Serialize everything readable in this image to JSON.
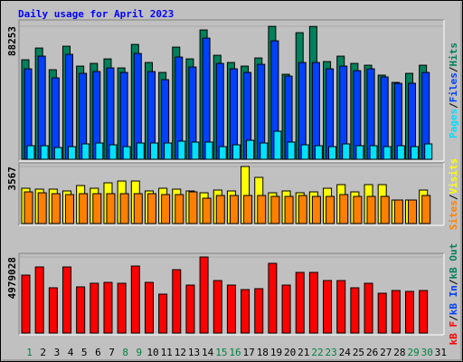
{
  "chart_data": {
    "type": "bar",
    "title": "Daily usage for April 2023",
    "categories": [
      "1",
      "2",
      "3",
      "4",
      "5",
      "6",
      "7",
      "8",
      "9",
      "10",
      "11",
      "12",
      "13",
      "14",
      "15",
      "16",
      "17",
      "18",
      "19",
      "20",
      "21",
      "22",
      "23",
      "24",
      "25",
      "26",
      "27",
      "28",
      "29",
      "30",
      "31"
    ],
    "category_colors": [
      "#008040",
      "#000000",
      "#000000",
      "#000000",
      "#000000",
      "#000000",
      "#000000",
      "#008040",
      "#008040",
      "#000000",
      "#000000",
      "#000000",
      "#000000",
      "#000000",
      "#008040",
      "#008040",
      "#000000",
      "#000000",
      "#000000",
      "#000000",
      "#000000",
      "#008040",
      "#008040",
      "#000000",
      "#000000",
      "#000000",
      "#000000",
      "#000000",
      "#008040",
      "#008040",
      "#000000"
    ],
    "legend_separator": "/",
    "panels": [
      {
        "ylim": [
          0,
          88253
        ],
        "yticks": [
          88253
        ],
        "series": [
          {
            "name": "Hits",
            "color": "#00805c",
            "values": [
              66000,
              73800,
              59400,
              75000,
              61800,
              63600,
              66600,
              60600,
              76200,
              64200,
              57600,
              74400,
              66600,
              85800,
              69000,
              64200,
              61800,
              67200,
              88200,
              56400,
              84000,
              88100,
              64800,
              68400,
              63600,
              62400,
              55800,
              51000,
              57000,
              62400,
              null
            ]
          },
          {
            "name": "Files",
            "color": "#0040ff",
            "values": [
              60000,
              68400,
              54000,
              69600,
              57000,
              58200,
              60600,
              57600,
              70200,
              58200,
              52800,
              67800,
              61200,
              80400,
              63600,
              60000,
              57600,
              63000,
              78600,
              55200,
              64200,
              64200,
              60000,
              61800,
              58800,
              60000,
              54600,
              50400,
              50400,
              57600,
              null
            ]
          },
          {
            "name": "Pages",
            "color": "#00e0ff",
            "values": [
              9000,
              9000,
              7800,
              8400,
              10200,
              10800,
              9600,
              8400,
              10800,
              10800,
              10800,
              12000,
              11400,
              11400,
              8400,
              9600,
              12600,
              10800,
              18600,
              11400,
              9600,
              9000,
              8400,
              10200,
              9000,
              9000,
              8400,
              9000,
              8400,
              10200,
              null
            ]
          }
        ]
      },
      {
        "ylim": [
          0,
          3567
        ],
        "yticks": [
          3567
        ],
        "series": [
          {
            "name": "Visits",
            "color": "#ffff00",
            "values": [
              2207,
              2151,
              2151,
              2038,
              2377,
              2207,
              2547,
              2660,
              2660,
              2038,
              2207,
              2151,
              2038,
              1924,
              2094,
              2038,
              3567,
              2887,
              1924,
              2038,
              1924,
              1981,
              2207,
              2434,
              1981,
              2434,
              2434,
              1472,
              1472,
              2094,
              null
            ]
          },
          {
            "name": "Sites",
            "color": "#ff8000",
            "values": [
              1981,
              1924,
              1868,
              1811,
              1868,
              1868,
              1868,
              1868,
              1868,
              1868,
              1811,
              1811,
              1981,
              1585,
              1755,
              1755,
              1755,
              1755,
              1698,
              1698,
              1755,
              1698,
              1698,
              1811,
              1698,
              1698,
              1698,
              1472,
              1472,
              1755,
              null
            ]
          }
        ]
      },
      {
        "ylim": [
          0,
          4979028
        ],
        "yticks": [
          4979028
        ],
        "series": [
          {
            "name": "kB F",
            "color": "#ff0000",
            "values": [
              3793536,
              4327002,
              2963700,
              4327002,
              3022974,
              3260070,
              3319344,
              3260070,
              4386276,
              3319344,
              2548782,
              4149180,
              3141522,
              4979028,
              3437892,
              3141522,
              2845152,
              2904426,
              4564098,
              3141522,
              3971358,
              3971358,
              3437892,
              3437892,
              2963700,
              3260070,
              2608056,
              2785878,
              2726604,
              2785878,
              null
            ]
          }
        ],
        "legend_only": [
          {
            "name": "kB In",
            "color": "#0040ff"
          },
          {
            "name": "kB Out",
            "color": "#00805c"
          }
        ]
      }
    ]
  }
}
